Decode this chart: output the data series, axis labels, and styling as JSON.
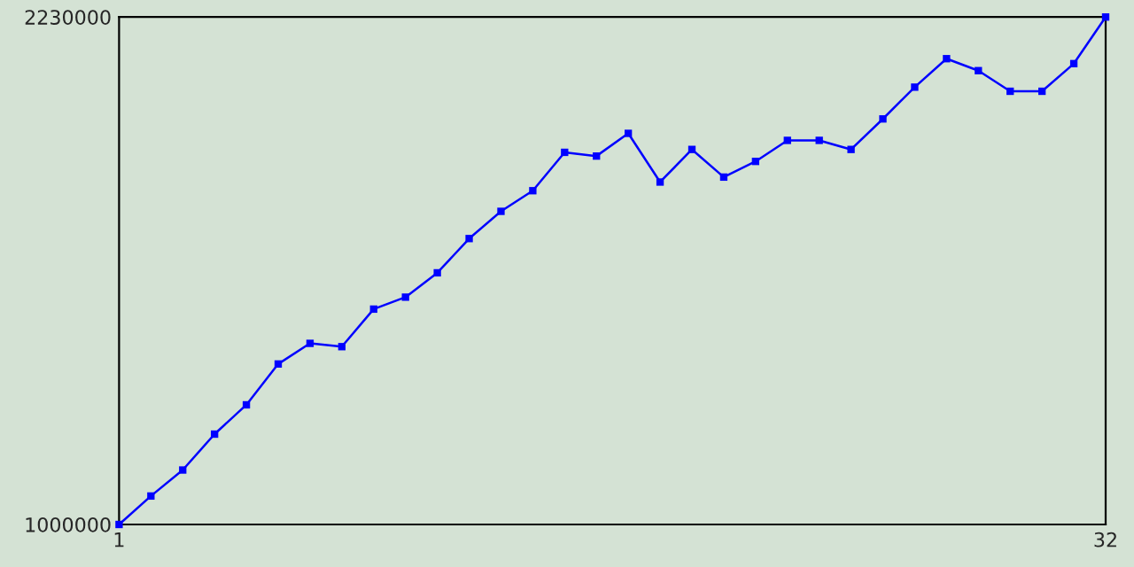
{
  "chart_data": {
    "type": "line",
    "x": [
      1,
      2,
      3,
      4,
      5,
      6,
      7,
      8,
      9,
      10,
      11,
      12,
      13,
      14,
      15,
      16,
      17,
      18,
      19,
      20,
      21,
      22,
      23,
      24,
      25,
      26,
      27,
      28,
      29,
      30,
      31,
      32
    ],
    "series": [
      {
        "color": "#0000ff",
        "values": [
          1000000,
          1069000,
          1132000,
          1219000,
          1290000,
          1389000,
          1439000,
          1431000,
          1522000,
          1551000,
          1610000,
          1693000,
          1759000,
          1809000,
          1902000,
          1893000,
          1948000,
          1830000,
          1909000,
          1842000,
          1880000,
          1931000,
          1931000,
          1909000,
          1983000,
          2060000,
          2129000,
          2100000,
          2050000,
          2050000,
          2117000,
          2230000
        ]
      }
    ],
    "xlim": [
      1,
      32
    ],
    "xticks": [
      1,
      32
    ],
    "ylim": [
      1000000,
      2230000
    ],
    "yticks": [
      1000000,
      2230000
    ],
    "grid": false,
    "marker": "square",
    "line_style": "solid"
  }
}
